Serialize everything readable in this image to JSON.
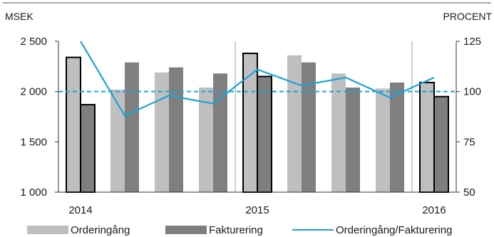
{
  "chart_data": {
    "type": "bar",
    "categories": [
      "2014 Q1",
      "2014 Q2",
      "2014 Q3",
      "2014 Q4",
      "2015 Q1",
      "2015 Q2",
      "2015 Q3",
      "2015 Q4",
      "2016 Q1"
    ],
    "x_tick_labels": [
      "2014",
      "2015",
      "2016"
    ],
    "highlighted_categories": [
      "2014 Q1",
      "2015 Q1",
      "2016 Q1"
    ],
    "series": [
      {
        "name": "Orderingång",
        "type": "bar",
        "axis": "left",
        "color": "#bfbfbf",
        "values": [
          2340,
          2020,
          2190,
          2040,
          2380,
          2360,
          2180,
          2030,
          2090
        ]
      },
      {
        "name": "Fakturering",
        "type": "bar",
        "axis": "left",
        "color": "#7f7f7f",
        "values": [
          1870,
          2290,
          2240,
          2180,
          2150,
          2290,
          2040,
          2090,
          1950
        ]
      },
      {
        "name": "Orderingång/Fakturering",
        "type": "line",
        "axis": "right",
        "color": "#1aa3d9",
        "values": [
          125,
          88,
          98,
          94,
          111,
          103,
          107,
          97,
          107
        ]
      }
    ],
    "reference_line": {
      "axis": "right",
      "value": 100,
      "style": "dashed",
      "color": "#1aa3d9"
    },
    "left_axis": {
      "label": "MSEK",
      "ylim": [
        1000,
        2500
      ],
      "ticks": [
        1000,
        1500,
        2000,
        2500
      ],
      "tick_labels": [
        "1 000",
        "1 500",
        "2 000",
        "2 500"
      ]
    },
    "right_axis": {
      "label": "PROCENT",
      "ylim": [
        50,
        125
      ],
      "ticks": [
        50,
        75,
        100,
        125
      ],
      "tick_labels": [
        "50",
        "75",
        "100",
        "125"
      ]
    },
    "grid": false,
    "legend_position": "bottom"
  }
}
